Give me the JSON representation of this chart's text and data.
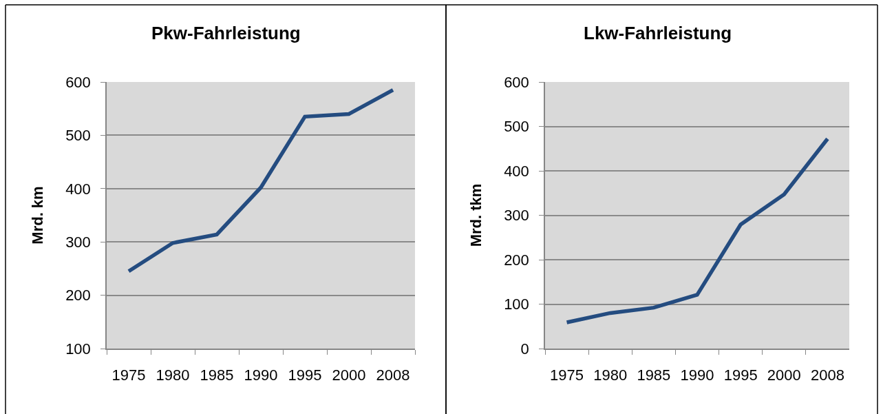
{
  "chart_data": [
    {
      "type": "line",
      "title": "Pkw-Fahrleistung",
      "ylabel": "Mrd. km",
      "categories": [
        "1975",
        "1980",
        "1985",
        "1990",
        "1995",
        "2000",
        "2008"
      ],
      "series": [
        {
          "color": "#244c80",
          "values": [
            245,
            298,
            314,
            402,
            535,
            540,
            585
          ]
        }
      ],
      "ylim": [
        100,
        600
      ],
      "yticks": [
        100,
        200,
        300,
        400,
        500,
        600
      ],
      "grid": "y",
      "line_style": "solid"
    },
    {
      "type": "line",
      "title": "Lkw-Fahrleistung",
      "ylabel": "Mrd. tkm",
      "categories": [
        "1975",
        "1980",
        "1985",
        "1990",
        "1995",
        "2000",
        "2008"
      ],
      "series": [
        {
          "color": "#244c80",
          "values": [
            59,
            80,
            92,
            121,
            279,
            347,
            472
          ]
        }
      ],
      "ylim": [
        0,
        600
      ],
      "yticks": [
        0,
        100,
        200,
        300,
        400,
        500,
        600
      ],
      "grid": "y",
      "line_style": "solid"
    }
  ]
}
